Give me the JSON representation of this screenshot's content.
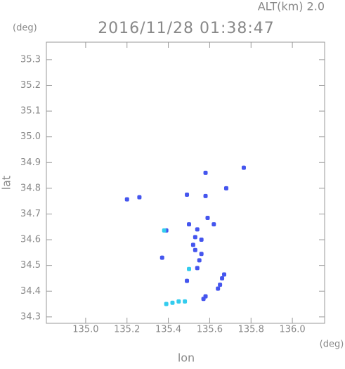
{
  "chart_data": {
    "type": "scatter",
    "title": "2016/11/28 01:38:47",
    "subtitle": "ALT(km) 2.0",
    "y_unit": "(deg)",
    "x_unit": "(deg)",
    "xlabel": "lon",
    "ylabel": "lat",
    "xlim": [
      134.81,
      136.156
    ],
    "ylim": [
      34.275,
      35.368
    ],
    "xticks": [
      {
        "value": 135,
        "label": "135.0"
      },
      {
        "value": 135.2,
        "label": "135.2"
      },
      {
        "value": 135.4,
        "label": "135.4"
      },
      {
        "value": 135.6,
        "label": "135.6"
      },
      {
        "value": 135.8,
        "label": "135.8"
      },
      {
        "value": 136,
        "label": "136.0"
      }
    ],
    "yticks": [
      34.3,
      34.4,
      34.5,
      34.6,
      34.7,
      34.8,
      34.9,
      {
        "value": 35,
        "label": "35.0"
      },
      35.1,
      35.2,
      35.3
    ],
    "series": [
      {
        "color": "#4455ee",
        "x": [
          135.2,
          135.26,
          135.765,
          135.58,
          135.49,
          135.58,
          135.68,
          135.5,
          135.39,
          135.53,
          135.55,
          135.54,
          135.49,
          135.57,
          135.65,
          135.66,
          135.59,
          135.62,
          135.53,
          135.56,
          135.37,
          135.52,
          135.56,
          135.54,
          135.58,
          135.64,
          135.67
        ],
        "values": [
          34.757,
          34.765,
          34.88,
          34.86,
          34.775,
          34.77,
          34.8,
          34.66,
          34.636,
          34.56,
          34.52,
          34.49,
          34.44,
          34.37,
          34.425,
          34.45,
          34.685,
          34.66,
          34.61,
          34.6,
          34.53,
          34.58,
          34.545,
          34.64,
          34.38,
          34.41,
          34.465
        ]
      },
      {
        "color": "#33ccee",
        "x": [
          135.38,
          135.5,
          135.39,
          135.42,
          135.45,
          135.48
        ],
        "values": [
          34.636,
          34.486,
          34.35,
          34.355,
          34.36,
          34.36
        ]
      }
    ]
  }
}
